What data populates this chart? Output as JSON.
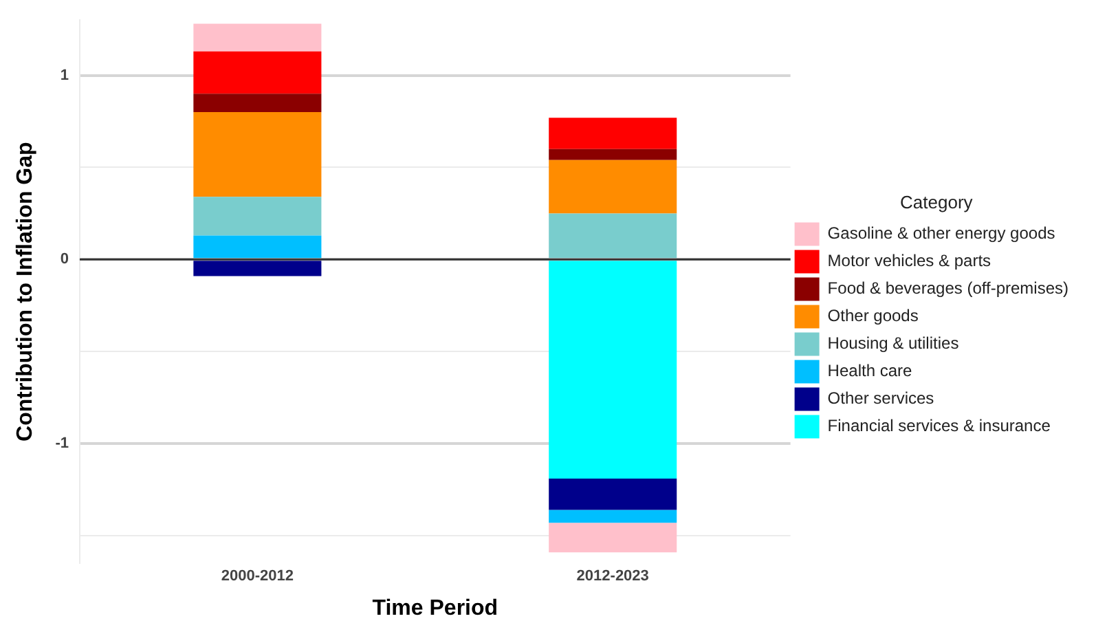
{
  "chart_data": {
    "type": "bar",
    "stacked": true,
    "xlabel": "Time Period",
    "ylabel": "Contribution to Inflation Gap",
    "legend_title": "Category",
    "legend": "right",
    "grid": "y",
    "categories": [
      "2000-2012",
      "2012-2023"
    ],
    "ylim": [
      -1.65,
      1.3
    ],
    "yticks": [
      {
        "value": -1.5,
        "label": null
      },
      -1,
      {
        "value": -0.5,
        "label": null
      },
      0,
      {
        "value": 0.5,
        "label": null
      },
      1
    ],
    "ref_lines": [
      {
        "axis": "y",
        "value": 0,
        "color": "#333333"
      }
    ],
    "series": [
      {
        "name": "Financial services & insurance",
        "color": "#00ffff",
        "values": [
          null,
          -1.19
        ]
      },
      {
        "name": "Other services",
        "color": "#00008b",
        "values": [
          -0.09,
          -0.17
        ]
      },
      {
        "name": "Health care",
        "color": "#00bfff",
        "values": [
          0.13,
          -0.07
        ]
      },
      {
        "name": "Housing & utilities",
        "color": "#79cdcd",
        "values": [
          0.21,
          0.25
        ]
      },
      {
        "name": "Other goods",
        "color": "#ff8c00",
        "values": [
          0.46,
          0.29
        ]
      },
      {
        "name": "Food & beverages (off-premises)",
        "color": "#8b0000",
        "values": [
          0.1,
          0.06
        ]
      },
      {
        "name": "Motor vehicles & parts",
        "color": "#ff0000",
        "values": [
          0.23,
          0.17
        ]
      },
      {
        "name": "Gasoline & other energy goods",
        "color": "#ffc0cb",
        "values": [
          0.15,
          -0.16
        ]
      }
    ]
  }
}
